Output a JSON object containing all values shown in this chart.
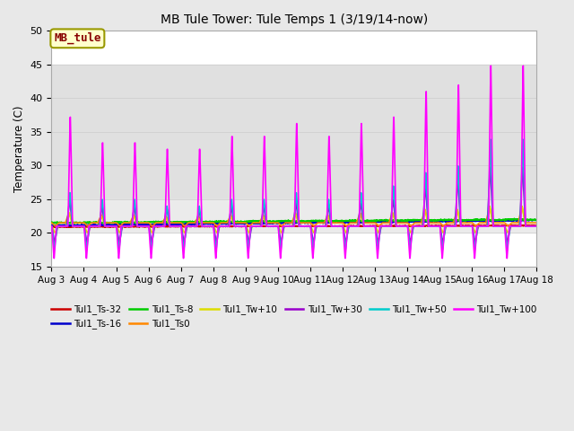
{
  "title": "MB Tule Tower: Tule Temps 1 (3/19/14-now)",
  "ylabel": "Temperature (C)",
  "xlim": [
    0,
    15
  ],
  "ylim": [
    15,
    50
  ],
  "yticks": [
    15,
    20,
    25,
    30,
    35,
    40,
    45,
    50
  ],
  "xtick_labels": [
    "Aug 3",
    "Aug 4",
    "Aug 5",
    "Aug 6",
    "Aug 7",
    "Aug 8",
    "Aug 9",
    "Aug 10",
    "Aug 11",
    "Aug 12",
    "Aug 13",
    "Aug 14",
    "Aug 15",
    "Aug 16",
    "Aug 17",
    "Aug 18"
  ],
  "xtick_positions": [
    0,
    1,
    2,
    3,
    4,
    5,
    6,
    7,
    8,
    9,
    10,
    11,
    12,
    13,
    14,
    15
  ],
  "shade_band": [
    25,
    45
  ],
  "fig_bg": "#e8e8e8",
  "plot_bg": "#ffffff",
  "series": [
    {
      "label": "Tul1_Ts-32",
      "color": "#cc0000",
      "lw": 1.2
    },
    {
      "label": "Tul1_Ts-16",
      "color": "#0000cc",
      "lw": 1.2
    },
    {
      "label": "Tul1_Ts-8",
      "color": "#00cc00",
      "lw": 1.2
    },
    {
      "label": "Tul1_Ts0",
      "color": "#ff8800",
      "lw": 1.2
    },
    {
      "label": "Tul1_Tw+10",
      "color": "#dddd00",
      "lw": 1.2
    },
    {
      "label": "Tul1_Tw+30",
      "color": "#9900cc",
      "lw": 1.2
    },
    {
      "label": "Tul1_Tw+50",
      "color": "#00cccc",
      "lw": 1.2
    },
    {
      "label": "Tul1_Tw+100",
      "color": "#ff00ff",
      "lw": 1.2
    }
  ],
  "legend_box": {
    "text": "MB_tule",
    "bg": "#ffffcc",
    "border": "#999900",
    "text_color": "#880000"
  },
  "base_temp": 21.0,
  "n_days": 15,
  "pts_per_day": 144
}
